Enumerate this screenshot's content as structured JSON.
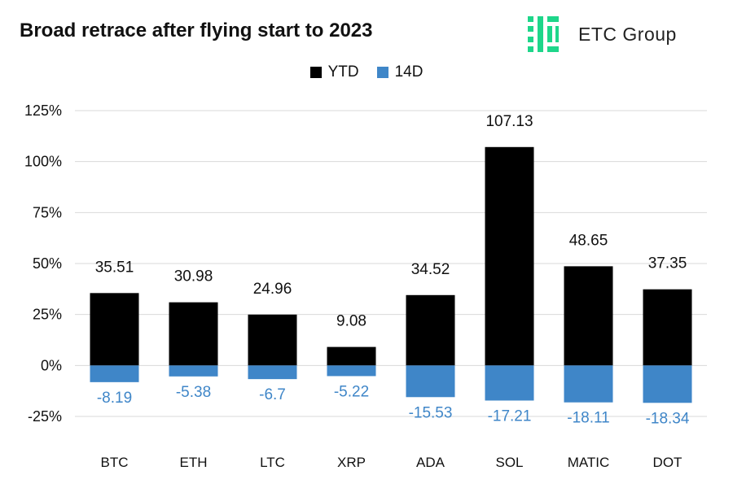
{
  "header": {
    "title": "Broad retrace after flying start to 2023",
    "brand": "ETC Group"
  },
  "colors": {
    "ytd": "#000000",
    "d14": "#3f86c8",
    "grid": "#d9d9d9",
    "logo": "#1ed68a"
  },
  "icons": {
    "logo": "etc-group-logo-icon"
  },
  "chart_data": {
    "type": "bar",
    "title": "Broad retrace after flying start to 2023",
    "xlabel": "",
    "ylabel": "",
    "ylim": [
      -25,
      125
    ],
    "yticks": [
      -25,
      0,
      25,
      50,
      75,
      100,
      125
    ],
    "ytick_labels": [
      "-25%",
      "0%",
      "25%",
      "50%",
      "75%",
      "100%",
      "125%"
    ],
    "grid": true,
    "legend_position": "top-center",
    "categories": [
      "BTC",
      "ETH",
      "LTC",
      "XRP",
      "ADA",
      "SOL",
      "MATIC",
      "DOT"
    ],
    "series": [
      {
        "name": "YTD",
        "values": [
          35.51,
          30.98,
          24.96,
          9.08,
          34.52,
          107.13,
          48.65,
          37.35
        ],
        "labels": [
          "35.51",
          "30.98",
          "24.96",
          "9.08",
          "34.52",
          "107.13",
          "48.65",
          "37.35"
        ]
      },
      {
        "name": "14D",
        "values": [
          -8.19,
          -5.38,
          -6.7,
          -5.22,
          -15.53,
          -17.21,
          -18.11,
          -18.34
        ],
        "labels": [
          "-8.19",
          "-5.38",
          "-6.7",
          "-5.22",
          "-15.53",
          "-17.21",
          "-18.11",
          "-18.34"
        ]
      }
    ]
  }
}
